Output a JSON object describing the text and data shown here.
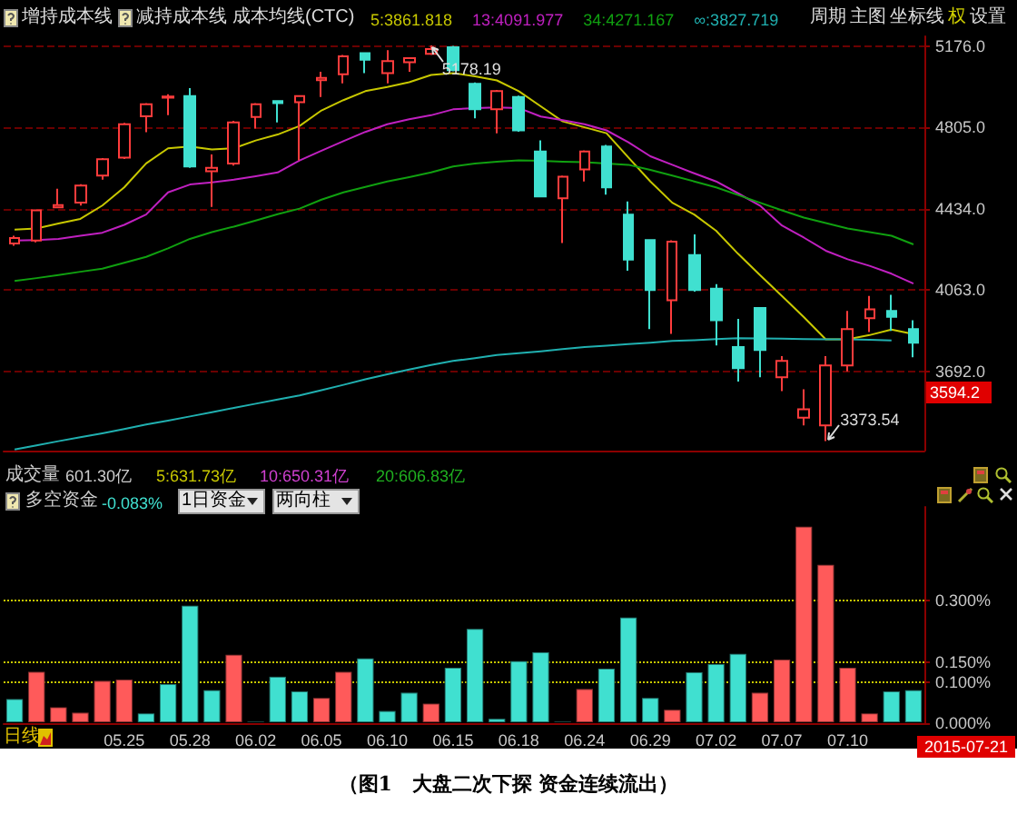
{
  "chart_data": [
    {
      "type": "candlestick",
      "categories": [
        null,
        null,
        null,
        null,
        null,
        null,
        null,
        null,
        null,
        null,
        null,
        null,
        null,
        null,
        null,
        null,
        null,
        null,
        null,
        null,
        null,
        null,
        null,
        null,
        null,
        null,
        null,
        null,
        null,
        null,
        null,
        null,
        null,
        null,
        null,
        null,
        null,
        null,
        null,
        null,
        null,
        null
      ],
      "ohlc": [
        [
          4275,
          4310,
          4265,
          4300
        ],
        [
          4288,
          4426,
          4280,
          4426
        ],
        [
          4440,
          4525,
          4440,
          4450
        ],
        [
          4461,
          4545,
          4448,
          4539
        ],
        [
          4585,
          4665,
          4566,
          4659
        ],
        [
          4667,
          4825,
          4660,
          4819
        ],
        [
          4855,
          4915,
          4783,
          4910
        ],
        [
          4940,
          4956,
          4860,
          4945
        ],
        [
          4948,
          4984,
          4620,
          4626
        ],
        [
          4605,
          4681,
          4442,
          4620
        ],
        [
          4640,
          4835,
          4630,
          4827
        ],
        [
          4852,
          4915,
          4799,
          4910
        ],
        [
          4925,
          4928,
          4827,
          4915
        ],
        [
          4920,
          4952,
          4654,
          4948
        ],
        [
          5020,
          5058,
          4943,
          5030
        ],
        [
          5047,
          5135,
          5005,
          5129
        ],
        [
          5143,
          5146,
          5052,
          5113
        ],
        [
          5052,
          5157,
          5005,
          5107
        ],
        [
          5102,
          5125,
          5058,
          5121
        ],
        [
          5140,
          5178.19,
          5135,
          5162
        ],
        [
          5170,
          5176,
          5060,
          5066
        ],
        [
          5003,
          5010,
          4846,
          4887
        ],
        [
          4887,
          4975,
          4778,
          4970
        ],
        [
          4943,
          4950,
          4785,
          4791
        ],
        [
          4695,
          4745,
          4485,
          4489
        ],
        [
          4481,
          4585,
          4277,
          4580
        ],
        [
          4613,
          4700,
          4558,
          4695
        ],
        [
          4717,
          4725,
          4498,
          4531
        ],
        [
          4407,
          4467,
          4151,
          4201
        ],
        [
          4291,
          4295,
          3884,
          4063
        ],
        [
          4016,
          4290,
          3863,
          4283
        ],
        [
          4222,
          4316,
          4055,
          4063
        ],
        [
          4069,
          4090,
          3810,
          3925
        ],
        [
          3802,
          3931,
          3645,
          3706
        ],
        [
          3981,
          3985,
          3665,
          3789
        ],
        [
          3665,
          3761,
          3601,
          3739
        ],
        [
          3480,
          3610,
          3445,
          3519
        ],
        [
          3445,
          3761,
          3373.54,
          3719
        ],
        [
          3719,
          3967,
          3692,
          3884
        ],
        [
          3934,
          4036,
          3871,
          3975
        ],
        [
          3967,
          4041,
          3876,
          3940
        ],
        [
          3884,
          3925,
          3756,
          3822
        ]
      ],
      "series": [
        {
          "type": "line",
          "name": "5:3861.818",
          "color": "#c8c800",
          "values": [
            4338,
            4343,
            4366,
            4387,
            4448,
            4531,
            4640,
            4709,
            4717,
            4704,
            4709,
            4745,
            4772,
            4811,
            4882,
            4929,
            4970,
            4989,
            5011,
            5044,
            5052,
            5038,
            5019,
            4970,
            4901,
            4832,
            4805,
            4778,
            4667,
            4558,
            4461,
            4407,
            4333,
            4228,
            4131,
            4036,
            3939,
            3838,
            3838,
            3857,
            3882,
            3862
          ]
        },
        {
          "type": "line",
          "name": "13:4091.977",
          "color": "#c020c0",
          "values": [
            4288,
            4291,
            4296,
            4310,
            4324,
            4360,
            4407,
            4508,
            4544,
            4554,
            4566,
            4582,
            4599,
            4654,
            4698,
            4742,
            4784,
            4819,
            4842,
            4860,
            4887,
            4893,
            4896,
            4893,
            4854,
            4838,
            4819,
            4791,
            4737,
            4673,
            4634,
            4595,
            4558,
            4504,
            4448,
            4357,
            4302,
            4242,
            4203,
            4173,
            4137,
            4092
          ]
        },
        {
          "type": "line",
          "name": "34:4271.167",
          "color": "#10a010",
          "values": [
            4104,
            4117,
            4131,
            4146,
            4160,
            4187,
            4214,
            4253,
            4296,
            4327,
            4352,
            4380,
            4409,
            4434,
            4475,
            4508,
            4533,
            4558,
            4578,
            4599,
            4626,
            4640,
            4648,
            4654,
            4652,
            4648,
            4646,
            4640,
            4634,
            4611,
            4585,
            4558,
            4531,
            4496,
            4461,
            4426,
            4393,
            4368,
            4343,
            4327,
            4310,
            4271
          ]
        },
        {
          "type": "line",
          "name": "∞:3827.719",
          "color": "#20b0b0",
          "values": [
            3335,
            3354,
            3373,
            3391,
            3409,
            3428,
            3449,
            3467,
            3486,
            3505,
            3525,
            3544,
            3563,
            3582,
            3606,
            3630,
            3655,
            3678,
            3700,
            3721,
            3739,
            3752,
            3766,
            3775,
            3783,
            3793,
            3802,
            3809,
            3816,
            3822,
            3830,
            3834,
            3839,
            3843,
            3842,
            3841,
            3839,
            3838,
            3838,
            3836,
            3833,
            null
          ]
        }
      ],
      "ylim": [
        3330,
        5220
      ],
      "yticks": [
        {
          "value": 3692,
          "label": "3692.0"
        },
        {
          "value": 4063,
          "label": "4063.0"
        },
        {
          "value": 4434,
          "label": "4434.0"
        },
        {
          "value": 4805,
          "label": "4805.0"
        },
        {
          "value": 5176,
          "label": "5176.0"
        }
      ],
      "tick_labels": "y",
      "grid": "y",
      "legend": "top",
      "marker": "none",
      "annotations": [
        "增持成本线",
        "减持成本线",
        "成本均线(CTC)",
        "周期",
        "主图",
        "坐标线",
        "权",
        "设置",
        "5178.19",
        "3373.54",
        {
          "text": "3594.2",
          "y": 3594.2
        }
      ]
    },
    {
      "type": "bar",
      "categories": [
        null,
        null,
        null,
        null,
        null,
        "05.25",
        null,
        null,
        "05.28",
        null,
        null,
        "06.02",
        null,
        null,
        "06.05",
        null,
        null,
        "06.10",
        null,
        null,
        "06.15",
        null,
        null,
        "06.18",
        null,
        null,
        "06.24",
        null,
        null,
        "06.29",
        null,
        null,
        "07.02",
        null,
        null,
        "07.07",
        null,
        null,
        "07.10",
        null,
        null,
        null
      ],
      "values": [
        0.061,
        0.128,
        0.041,
        0.028,
        0.106,
        0.109,
        0.026,
        0.098,
        0.29,
        0.083,
        0.17,
        0.007,
        0.116,
        0.08,
        0.064,
        0.128,
        0.161,
        0.032,
        0.077,
        0.05,
        0.138,
        0.233,
        0.013,
        0.154,
        0.176,
        0.007,
        0.086,
        0.136,
        0.261,
        0.064,
        0.035,
        0.127,
        0.147,
        0.172,
        0.077,
        0.158,
        0.484,
        0.39,
        0.138,
        0.026,
        0.08,
        0.083
      ],
      "colors": [
        "#40e0d0",
        "#ff5a5a",
        "#ff5a5a",
        "#ff5a5a",
        "#ff5a5a",
        "#ff5a5a",
        "#40e0d0",
        "#40e0d0",
        "#40e0d0",
        "#40e0d0",
        "#ff5a5a",
        "#2e6f68",
        "#40e0d0",
        "#40e0d0",
        "#ff5a5a",
        "#ff5a5a",
        "#40e0d0",
        "#40e0d0",
        "#40e0d0",
        "#ff5a5a",
        "#40e0d0",
        "#40e0d0",
        "#40e0d0",
        "#40e0d0",
        "#40e0d0",
        "#2e6f68",
        "#ff5a5a",
        "#40e0d0",
        "#40e0d0",
        "#40e0d0",
        "#ff5a5a",
        "#40e0d0",
        "#40e0d0",
        "#40e0d0",
        "#ff5a5a",
        "#ff5a5a",
        "#ff5a5a",
        "#ff5a5a",
        "#ff5a5a",
        "#ff5a5a",
        "#40e0d0",
        "#40e0d0"
      ],
      "ylim": [
        0,
        0.53
      ],
      "yticks": [
        {
          "value": 0,
          "label": "0.000%"
        },
        {
          "value": 0.1,
          "label": "0.100%"
        },
        {
          "value": 0.15,
          "label": "0.150%"
        },
        {
          "value": 0.3,
          "label": "0.300%"
        }
      ],
      "grid": "y",
      "annotations": [
        "成交量",
        "601.30亿",
        "5:631.73亿",
        "10:650.31亿",
        "20:606.83亿",
        "多空资金",
        "-0.083%",
        "1日资金",
        "两向柱",
        "日线",
        "2015-07-21",
        "（图1　大盘二次下探 资金连续流出）"
      ]
    }
  ]
}
